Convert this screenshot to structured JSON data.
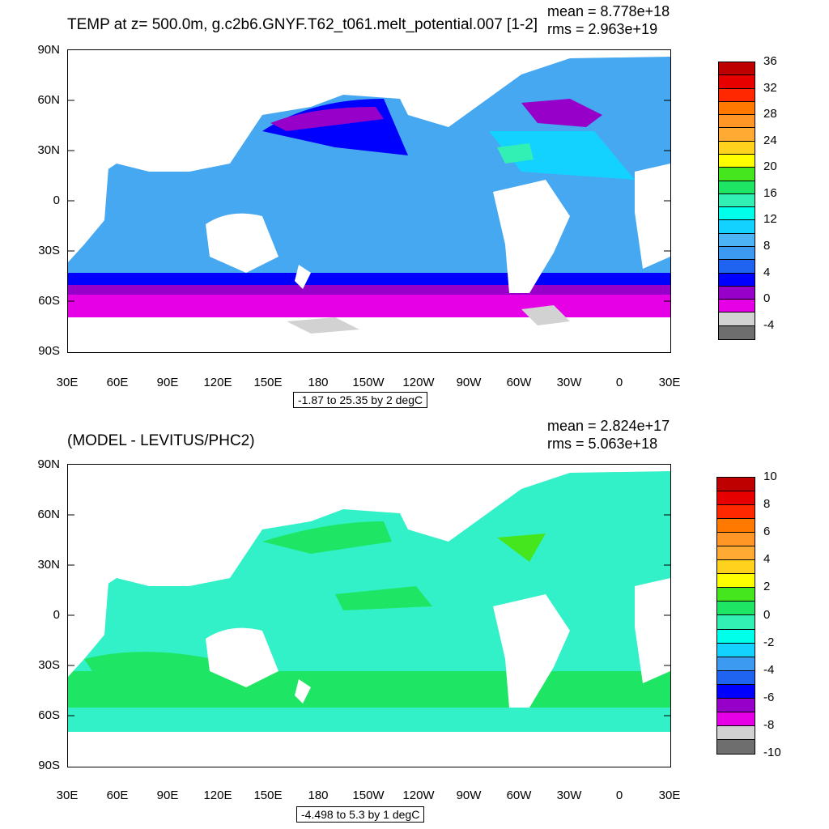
{
  "panel1": {
    "title": "TEMP at z= 500.0m, g.c2b6.GNYF.T62_t061.melt_potential.007 [1-2]",
    "mean": "mean = 8.778e+18",
    "rms": "rms = 2.963e+19",
    "range": "-1.87 to 25.35 by 2 degC",
    "colorbar_colors": [
      "#6e6e6e",
      "#d2d2d2",
      "#e600e6",
      "#9600c8",
      "#0000ff",
      "#1e64f0",
      "#3c9bf0",
      "#4cb4f5",
      "#14d2ff",
      "#00ffeb",
      "#32f0b4",
      "#1ee664",
      "#46e61e",
      "#ffff00",
      "#ffd21e",
      "#ffaa32",
      "#ff9626",
      "#ff7800",
      "#ff2800",
      "#e60000",
      "#be0000"
    ],
    "colorbar_labels": [
      "36",
      "32",
      "28",
      "24",
      "20",
      "16",
      "12",
      "8",
      "4",
      "0",
      "-4"
    ],
    "ocean_color": "#46a8f0",
    "south_colors": [
      "#0000ff",
      "#9600c8",
      "#e600e6"
    ]
  },
  "panel2": {
    "title": "(MODEL - LEVITUS/PHC2)",
    "mean": "mean = 2.824e+17",
    "rms": "rms = 5.063e+18",
    "range": "-4.498 to 5.3 by 1 degC",
    "colorbar_colors": [
      "#6e6e6e",
      "#d2d2d2",
      "#e600e6",
      "#9600c8",
      "#0000ff",
      "#1e64f0",
      "#3c9bf0",
      "#14d2ff",
      "#00ffeb",
      "#32f0b4",
      "#1ee664",
      "#46e61e",
      "#ffff00",
      "#ffd21e",
      "#ffaa32",
      "#ff9626",
      "#ff7800",
      "#ff2800",
      "#e60000",
      "#be0000"
    ],
    "colorbar_labels": [
      "10",
      "8",
      "6",
      "4",
      "2",
      "0",
      "-2",
      "-4",
      "-6",
      "-8",
      "-10"
    ],
    "ocean_color": "#32f0c8",
    "south_colors": [
      "#1ee664",
      "#32f0b4"
    ]
  },
  "axes": {
    "lat_labels": [
      "90N",
      "60N",
      "30N",
      "0",
      "30S",
      "60S",
      "90S"
    ],
    "lon_labels": [
      "30E",
      "60E",
      "90E",
      "120E",
      "150E",
      "180",
      "150W",
      "120W",
      "90W",
      "60W",
      "30W",
      "0",
      "30E"
    ]
  }
}
